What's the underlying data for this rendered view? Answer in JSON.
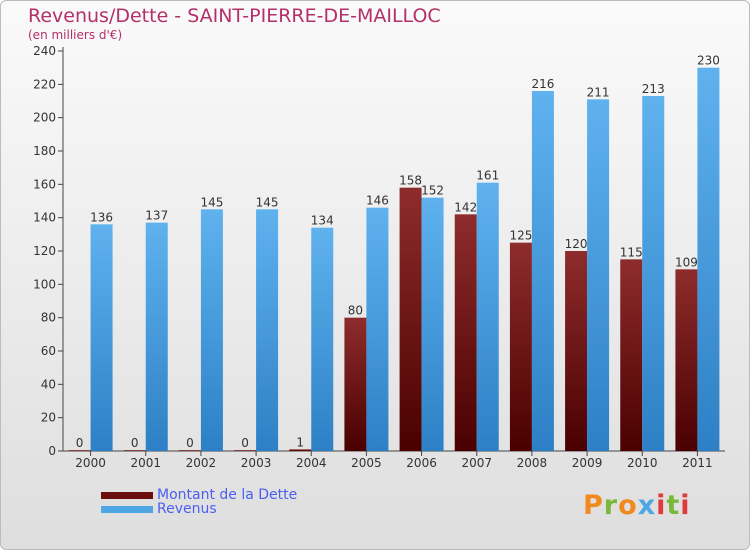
{
  "title": "Revenus/Dette - SAINT-PIERRE-DE-MAILLOC",
  "subtitle": "(en milliers d'€)",
  "colors": {
    "dette": "#7a1a1a",
    "revenus": "#4ea6e4",
    "title": "#b3306a"
  },
  "legend": [
    {
      "label": "Montant de la Dette",
      "color": "#6b0e0e"
    },
    {
      "label": "Revenus",
      "color": "#4ea6e4"
    }
  ],
  "logo": {
    "text": "Proxiti",
    "letter_colors": [
      "#f08a1e",
      "#7ab83a",
      "#f08a1e",
      "#4ea6e4",
      "#e03a3a",
      "#7ab83a",
      "#e03a3a"
    ]
  },
  "chart_data": {
    "type": "bar",
    "categories": [
      "2000",
      "2001",
      "2002",
      "2003",
      "2004",
      "2005",
      "2006",
      "2007",
      "2008",
      "2009",
      "2010",
      "2011"
    ],
    "series": [
      {
        "name": "Montant de la Dette",
        "values": [
          0,
          0,
          0,
          0,
          1,
          80,
          158,
          142,
          125,
          120,
          115,
          109
        ]
      },
      {
        "name": "Revenus",
        "values": [
          136,
          137,
          145,
          145,
          134,
          146,
          152,
          161,
          216,
          211,
          213,
          230
        ]
      }
    ],
    "ylim": [
      0,
      240
    ],
    "yticks": [
      0,
      20,
      40,
      60,
      80,
      100,
      120,
      140,
      160,
      180,
      200,
      220,
      240
    ],
    "grid": false,
    "legend_position": "bottom-left"
  }
}
